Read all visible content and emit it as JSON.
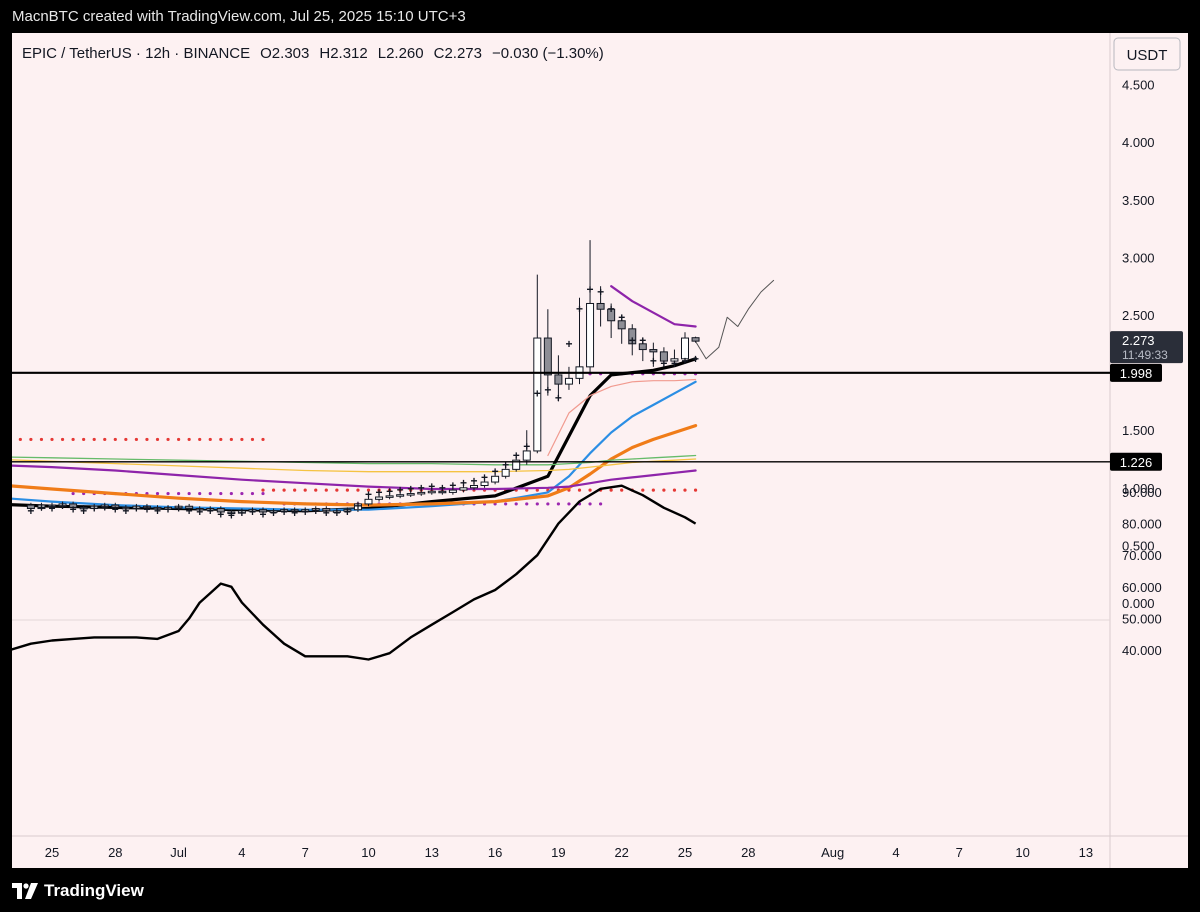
{
  "header": {
    "attribution": "MacnBTC created with TradingView.com, Jul 25, 2025 15:10 UTC+3"
  },
  "footer": {
    "brand": "TradingView"
  },
  "colors": {
    "background": "#fdf1f2",
    "candle_up": "#ffffff",
    "candle_down": "#8e8e96",
    "ema_black": "#000000",
    "ema_blue": "#2b8ee4",
    "ema_orange": "#f07c18",
    "ema_purple": "#8e24aa",
    "ema_salmon": "#f19a8f",
    "ema_green": "#66bb6a",
    "ema_yellow": "#f5c342",
    "dots_red": "#e53935",
    "dots_purple": "#9c27b0"
  },
  "chart_data": [
    {
      "type": "candlestick",
      "symbol": "EPIC / TetherUS · 12h · BINANCE",
      "ohlc": {
        "open": "O2.303",
        "high": "H2.312",
        "low": "L2.260",
        "close": "C2.273",
        "change": "−0.030 (−1.30%)"
      },
      "currency": "USDT",
      "y_ticks": [
        "4.500",
        "4.000",
        "3.500",
        "3.000",
        "2.500",
        "1.500",
        "1.000",
        "0.500",
        "0.000"
      ],
      "ylim": [
        -0.1,
        4.65
      ],
      "x_ticks": [
        "25",
        "28",
        "Jul",
        "4",
        "7",
        "10",
        "13",
        "16",
        "19",
        "22",
        "25",
        "28",
        "Aug",
        "4",
        "7",
        "10",
        "13"
      ],
      "x_tick_days": [
        25,
        28,
        31,
        34,
        37,
        40,
        43,
        46,
        49,
        52,
        55,
        58,
        62,
        65,
        68,
        71,
        74
      ],
      "last_price": {
        "value": 2.273,
        "label": "2.273",
        "countdown": "11:49:33"
      },
      "horizontal_levels": [
        {
          "value": 1.998,
          "label": "1.998"
        },
        {
          "value": 1.226,
          "label": "1.226"
        }
      ],
      "candles_close": [
        0.82,
        0.85,
        0.84,
        0.86,
        0.83,
        0.82,
        0.84,
        0.85,
        0.83,
        0.82,
        0.84,
        0.83,
        0.82,
        0.83,
        0.84,
        0.82,
        0.81,
        0.82,
        0.79,
        0.78,
        0.8,
        0.81,
        0.79,
        0.8,
        0.81,
        0.8,
        0.81,
        0.82,
        0.8,
        0.8,
        0.81,
        0.86,
        0.9,
        0.92,
        0.93,
        0.94,
        0.95,
        0.96,
        0.97,
        0.96,
        0.98,
        1.0,
        1.02,
        1.05,
        1.1,
        1.16,
        1.24,
        1.32,
        2.3,
        1.98,
        1.9,
        1.95,
        2.05,
        2.6,
        2.55,
        2.45,
        2.38,
        2.25,
        2.2,
        2.18,
        2.1,
        2.12,
        2.3,
        2.273
      ],
      "candles_open": [
        0.85,
        0.82,
        0.85,
        0.84,
        0.86,
        0.83,
        0.82,
        0.84,
        0.85,
        0.83,
        0.82,
        0.84,
        0.83,
        0.82,
        0.83,
        0.84,
        0.82,
        0.81,
        0.82,
        0.79,
        0.78,
        0.8,
        0.81,
        0.79,
        0.8,
        0.81,
        0.8,
        0.81,
        0.82,
        0.8,
        0.8,
        0.81,
        0.86,
        0.9,
        0.92,
        0.93,
        0.94,
        0.95,
        0.96,
        0.97,
        0.96,
        0.98,
        1.0,
        1.02,
        1.05,
        1.1,
        1.16,
        1.24,
        1.32,
        2.3,
        1.98,
        1.9,
        1.95,
        2.05,
        2.6,
        2.55,
        2.45,
        2.38,
        2.25,
        2.2,
        2.18,
        2.1,
        2.12,
        2.303
      ],
      "candles_high": [
        0.87,
        0.87,
        0.87,
        0.88,
        0.88,
        0.85,
        0.86,
        0.87,
        0.87,
        0.85,
        0.86,
        0.86,
        0.85,
        0.85,
        0.86,
        0.86,
        0.84,
        0.84,
        0.84,
        0.81,
        0.82,
        0.83,
        0.83,
        0.82,
        0.83,
        0.83,
        0.83,
        0.84,
        0.84,
        0.82,
        0.83,
        0.88,
        0.92,
        0.94,
        0.95,
        0.96,
        0.97,
        0.98,
        0.99,
        0.99,
        1.0,
        1.02,
        1.04,
        1.07,
        1.12,
        1.19,
        1.27,
        1.5,
        2.85,
        2.55,
        2.15,
        2.05,
        2.65,
        3.15,
        2.75,
        2.6,
        2.5,
        2.42,
        2.3,
        2.26,
        2.22,
        2.2,
        2.35,
        2.312
      ],
      "candles_low": [
        0.8,
        0.8,
        0.82,
        0.82,
        0.81,
        0.8,
        0.8,
        0.82,
        0.81,
        0.8,
        0.8,
        0.81,
        0.8,
        0.8,
        0.81,
        0.8,
        0.79,
        0.79,
        0.76,
        0.75,
        0.76,
        0.78,
        0.77,
        0.77,
        0.78,
        0.78,
        0.78,
        0.79,
        0.78,
        0.78,
        0.78,
        0.79,
        0.84,
        0.88,
        0.9,
        0.91,
        0.92,
        0.93,
        0.94,
        0.94,
        0.94,
        0.96,
        0.98,
        1.0,
        1.03,
        1.08,
        1.14,
        1.2,
        1.3,
        1.8,
        1.75,
        1.85,
        1.9,
        2.0,
        2.4,
        2.3,
        2.25,
        2.15,
        2.1,
        2.05,
        2.05,
        2.05,
        2.1,
        2.26
      ],
      "series": [
        {
          "name": "ema1",
          "color": "#000000",
          "x": [
            22,
            25,
            28,
            31,
            34,
            37,
            40,
            43,
            46,
            48.5,
            49.5,
            50.5,
            51.5,
            52.5,
            53.5,
            54.5,
            55.5
          ],
          "y": [
            0.86,
            0.84,
            0.83,
            0.82,
            0.81,
            0.8,
            0.82,
            0.88,
            0.93,
            1.1,
            1.45,
            1.8,
            1.98,
            2.0,
            2.02,
            2.06,
            2.12
          ]
        },
        {
          "name": "ema2",
          "color": "#2b8ee4",
          "x": [
            22,
            25,
            28,
            31,
            34,
            37,
            40,
            43,
            46,
            48.5,
            49.5,
            50.5,
            51.5,
            52.5,
            53.5,
            54.5,
            55.5
          ],
          "y": [
            0.92,
            0.88,
            0.85,
            0.83,
            0.82,
            0.81,
            0.81,
            0.84,
            0.88,
            0.96,
            1.1,
            1.3,
            1.48,
            1.62,
            1.72,
            1.82,
            1.92
          ]
        },
        {
          "name": "ema3",
          "color": "#f07c18",
          "x": [
            22,
            25,
            28,
            31,
            34,
            37,
            40,
            43,
            46,
            48.5,
            49.5,
            50.5,
            51.5,
            52.5,
            53.5,
            54.5,
            55.5
          ],
          "y": [
            1.03,
            0.99,
            0.95,
            0.91,
            0.88,
            0.86,
            0.85,
            0.86,
            0.88,
            0.93,
            1.0,
            1.12,
            1.25,
            1.35,
            1.42,
            1.48,
            1.54
          ]
        },
        {
          "name": "ema4",
          "color": "#8e24aa",
          "x": [
            22,
            25,
            28,
            31,
            34,
            37,
            40,
            43,
            46,
            48.5,
            49.5,
            50.5,
            51.5,
            52.5,
            53.5,
            54.5,
            55.5
          ],
          "y": [
            1.2,
            1.18,
            1.15,
            1.11,
            1.07,
            1.04,
            1.01,
            0.99,
            0.99,
            1.0,
            1.01,
            1.04,
            1.07,
            1.09,
            1.11,
            1.13,
            1.15
          ]
        },
        {
          "name": "ema5",
          "color": "#66bb6a",
          "x": [
            22,
            25,
            28,
            31,
            34,
            37,
            40,
            43,
            46,
            48.5,
            49.5,
            50.5,
            51.5,
            52.5,
            53.5,
            54.5,
            55.5
          ],
          "y": [
            1.27,
            1.26,
            1.25,
            1.24,
            1.23,
            1.22,
            1.21,
            1.21,
            1.2,
            1.2,
            1.21,
            1.22,
            1.24,
            1.25,
            1.26,
            1.27,
            1.28
          ]
        },
        {
          "name": "ema6",
          "color": "#f5c342",
          "x": [
            22,
            25,
            28,
            31,
            34,
            37,
            40,
            43,
            46,
            48.5,
            49.5,
            50.5,
            51.5,
            52.5,
            53.5,
            54.5,
            55.5
          ],
          "y": [
            1.25,
            1.23,
            1.21,
            1.19,
            1.17,
            1.15,
            1.14,
            1.14,
            1.14,
            1.15,
            1.16,
            1.18,
            1.2,
            1.22,
            1.23,
            1.24,
            1.25
          ]
        },
        {
          "name": "env_upper",
          "color": "#8e24aa",
          "x": [
            51.5,
            52.5,
            53.5,
            54.5,
            55.5
          ],
          "y": [
            2.75,
            2.62,
            2.52,
            2.42,
            2.4
          ]
        },
        {
          "name": "env_lower",
          "color": "#f19a8f",
          "x": [
            48.5,
            49.5,
            50.5,
            51.5,
            52.5,
            53.5,
            54.5,
            55.5
          ],
          "y": [
            1.28,
            1.65,
            1.8,
            1.88,
            1.92,
            1.93,
            1.93,
            1.94
          ]
        },
        {
          "name": "projection",
          "color": "#555555",
          "x": [
            55.5,
            56.0,
            56.6,
            57.0,
            57.5,
            58.0,
            58.6,
            59.2
          ],
          "y": [
            2.27,
            2.12,
            2.22,
            2.48,
            2.4,
            2.55,
            2.7,
            2.8
          ]
        }
      ],
      "dotted_lines": [
        {
          "color": "#e53935",
          "y": 1.42,
          "x_start": 22,
          "x_end": 35
        },
        {
          "color": "#e53935",
          "y": 0.98,
          "x_start": 35,
          "x_end": 55.5
        },
        {
          "color": "#9c27b0",
          "y": 0.95,
          "x_start": 26,
          "x_end": 35
        },
        {
          "color": "#9c27b0",
          "y": 0.86,
          "x_start": 36,
          "x_end": 51
        },
        {
          "color": "#9c27b0",
          "y": 1.99,
          "x_start": 50.5,
          "x_end": 55.5
        }
      ],
      "plus_markers_y": [
        0.8,
        0.83,
        0.82,
        0.84,
        0.81,
        0.8,
        0.82,
        0.83,
        0.81,
        0.8,
        0.82,
        0.81,
        0.8,
        0.81,
        0.82,
        0.8,
        0.79,
        0.8,
        0.77,
        0.76,
        0.78,
        0.79,
        0.77,
        0.78,
        0.79,
        0.78,
        0.79,
        0.8,
        0.78,
        0.78,
        0.79,
        0.84,
        0.94,
        0.96,
        0.97,
        0.98,
        0.99,
        1.0,
        1.01,
        1.0,
        1.02,
        1.04,
        1.06,
        1.09,
        1.14,
        1.2,
        1.28,
        1.36,
        1.82,
        1.85,
        1.78,
        2.25,
        2.55,
        2.72,
        2.7,
        2.55,
        2.48,
        2.28,
        2.28,
        2.1,
        2.08,
        2.08,
        2.1,
        2.12
      ]
    },
    {
      "type": "line",
      "y_ticks": [
        "90.000",
        "80.000",
        "70.000",
        "60.000",
        "50.000",
        "40.000"
      ],
      "ylim": [
        31,
        98
      ],
      "x": [
        22,
        23,
        24,
        25,
        26,
        27,
        28,
        29,
        30,
        31,
        31.5,
        32,
        32.5,
        33,
        33.5,
        34,
        35,
        36,
        37,
        38,
        39,
        40,
        41,
        42,
        43,
        44,
        45,
        46,
        47,
        48,
        49,
        50,
        51,
        52,
        53,
        54,
        55,
        55.5
      ],
      "y": [
        39,
        40,
        42,
        43,
        43.5,
        44,
        44,
        44,
        43.5,
        46,
        50,
        55,
        58,
        61,
        60,
        55,
        48,
        42,
        38,
        38,
        38,
        37,
        39,
        44,
        48,
        52,
        56,
        59,
        64,
        70,
        80,
        87,
        91,
        92,
        89,
        85,
        82,
        80
      ]
    }
  ]
}
